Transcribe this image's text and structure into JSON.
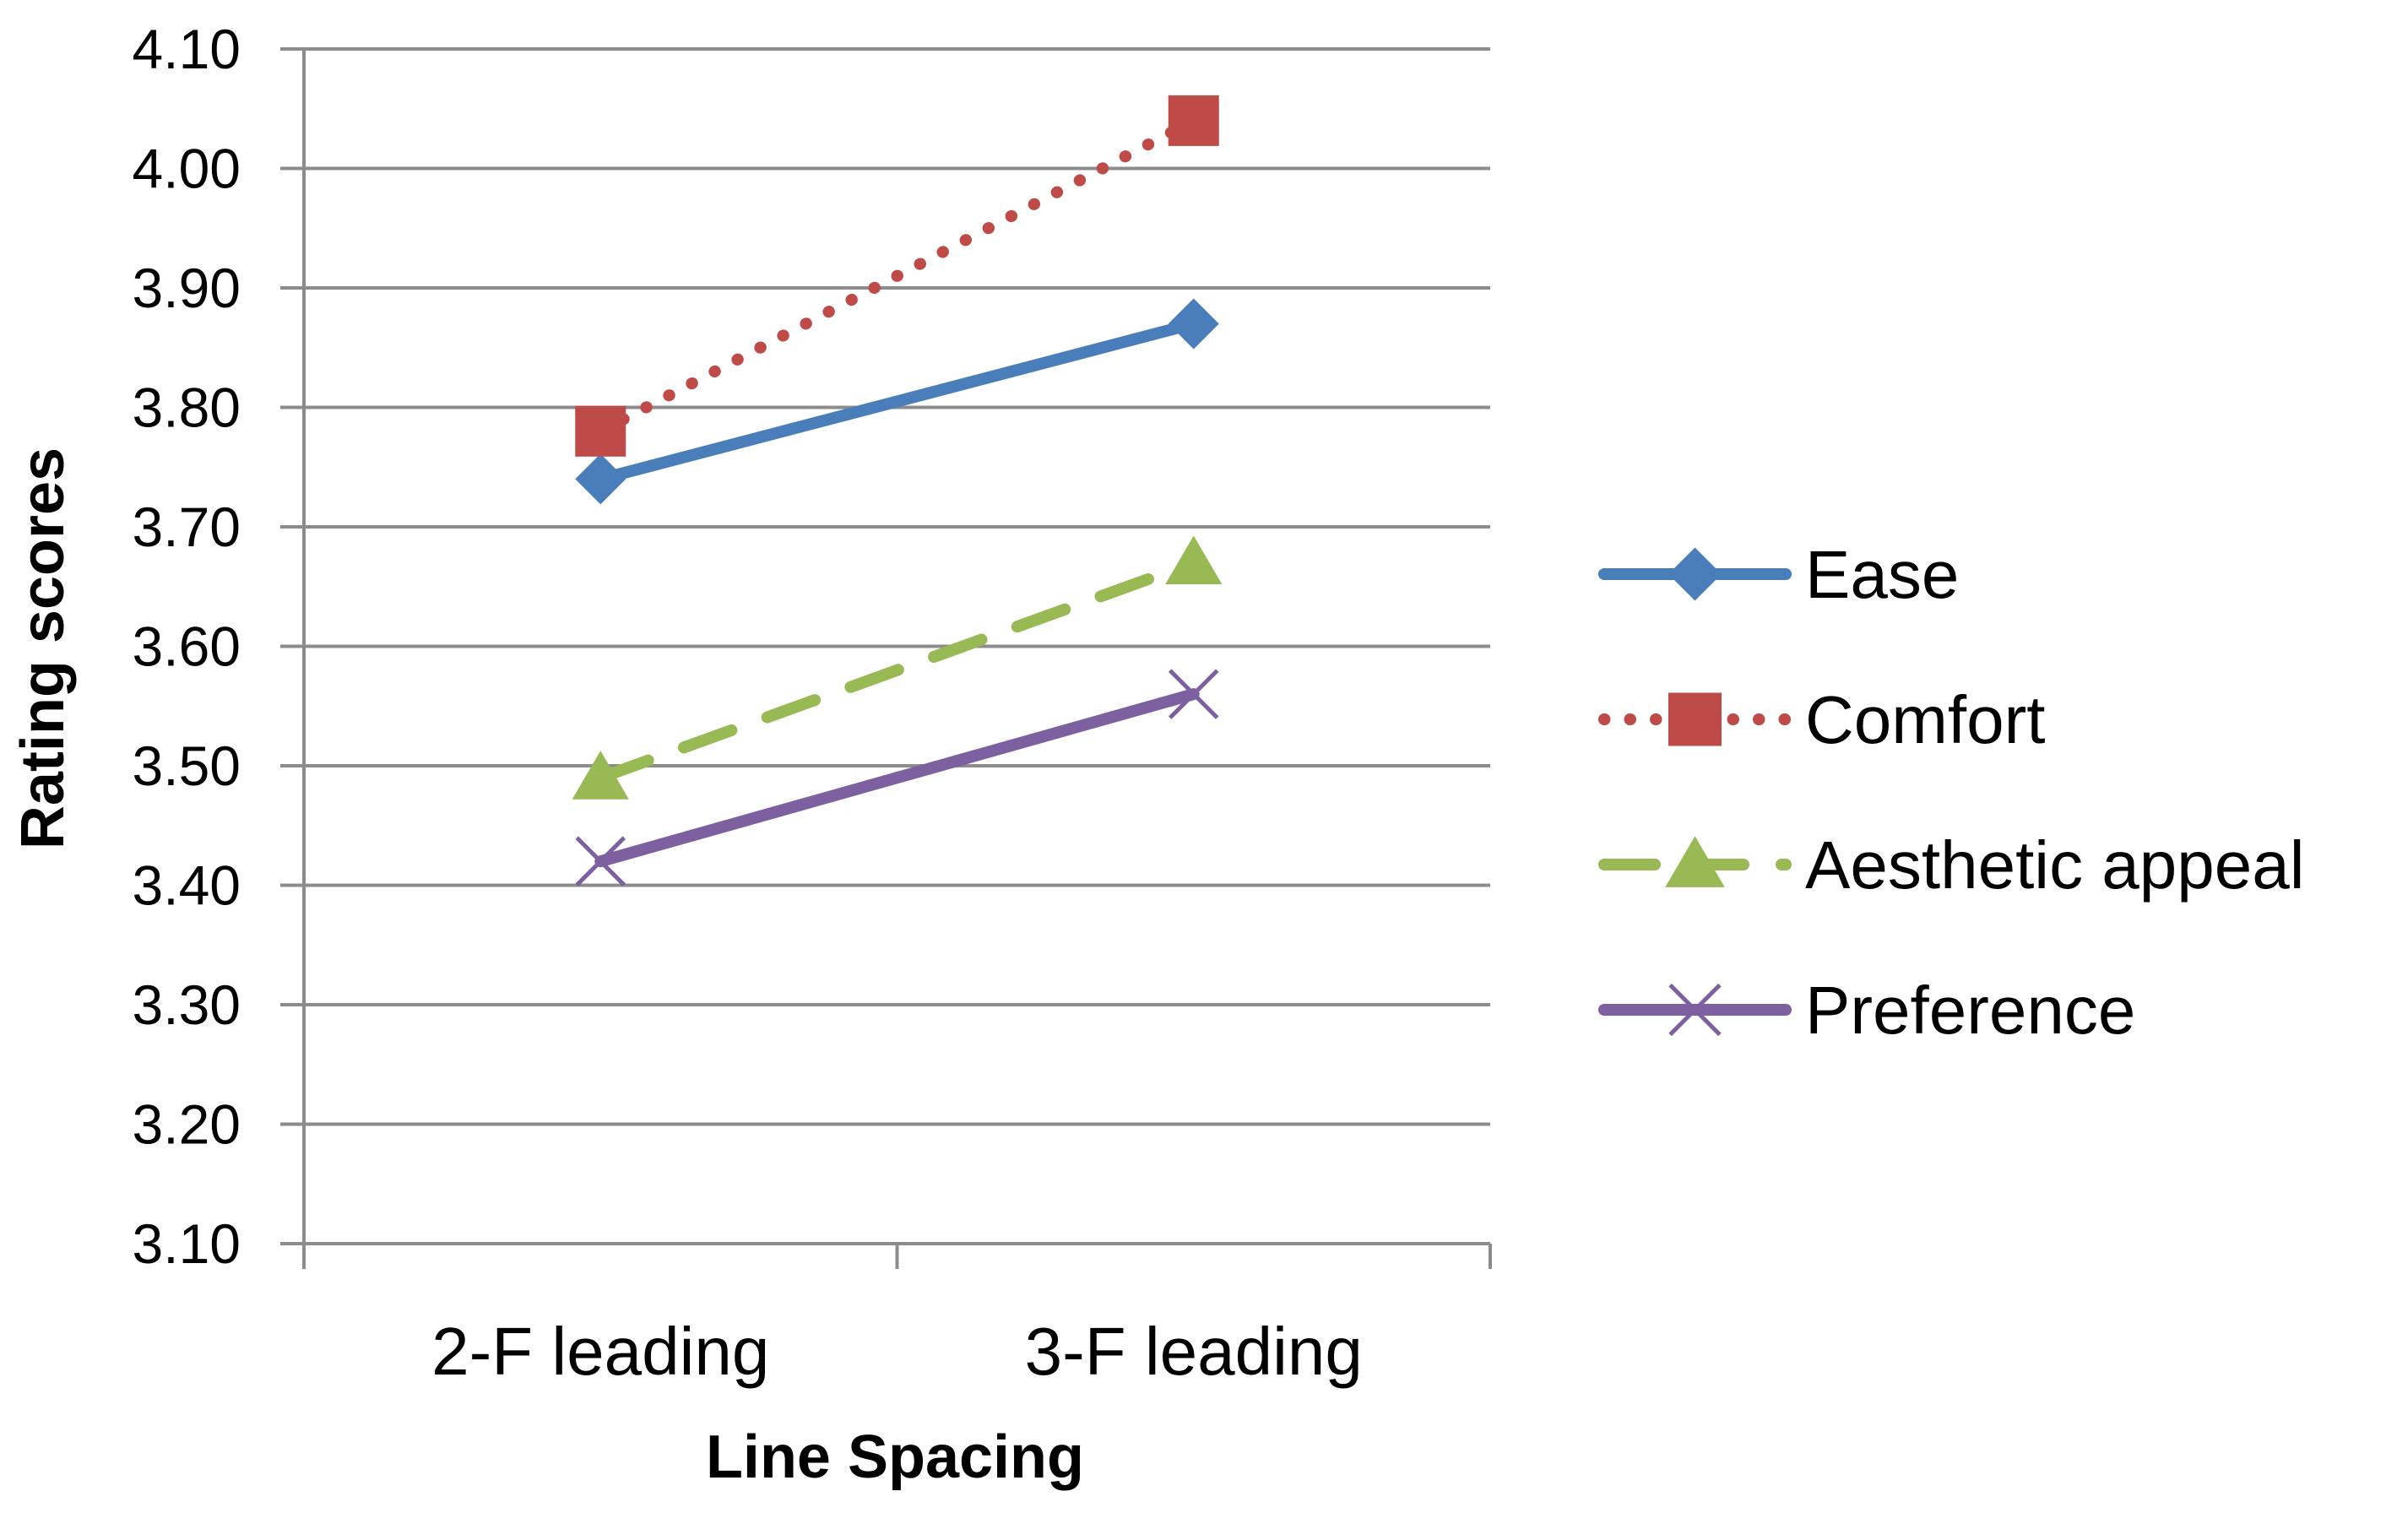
{
  "chart_data": {
    "type": "line",
    "title": "",
    "xlabel": "Line Spacing",
    "ylabel": "Rating scores",
    "categories": [
      "2-F leading",
      "3-F leading"
    ],
    "ylim": [
      3.1,
      4.1
    ],
    "ytick_step": 0.1,
    "yticks": [
      "3.10",
      "3.20",
      "3.30",
      "3.40",
      "3.50",
      "3.60",
      "3.70",
      "3.80",
      "3.90",
      "4.00",
      "4.10"
    ],
    "grid": true,
    "legend_position": "right",
    "series": [
      {
        "name": "Ease",
        "values": [
          3.74,
          3.87
        ],
        "color": "#4a7ebb",
        "line_style": "solid",
        "marker": "diamond"
      },
      {
        "name": "Comfort",
        "values": [
          3.78,
          4.04
        ],
        "color": "#be4b48",
        "line_style": "dotted",
        "marker": "square"
      },
      {
        "name": "Aesthetic appeal",
        "values": [
          3.49,
          3.67
        ],
        "color": "#98b954",
        "line_style": "dashed",
        "marker": "triangle"
      },
      {
        "name": "Preference",
        "values": [
          3.42,
          3.56
        ],
        "color": "#7d60a0",
        "line_style": "solid",
        "marker": "x"
      }
    ]
  }
}
